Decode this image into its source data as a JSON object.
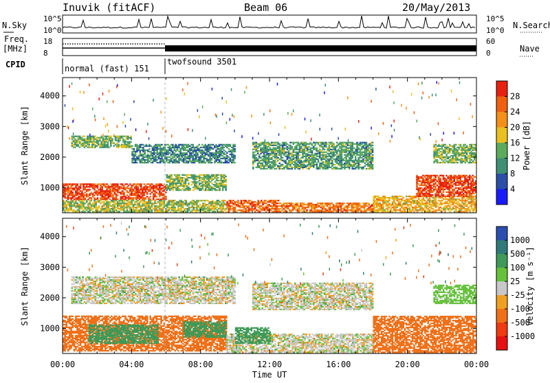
{
  "header": {
    "station": "Inuvik (fitACF)",
    "beam": "Beam 06",
    "date": "20/May/2013"
  },
  "top_panels": {
    "nsky": {
      "label": "N.Sky",
      "ticks": [
        "10^5",
        "10^0"
      ]
    },
    "nsearch": {
      "label": "N.Search",
      "ticks": [
        "10^5",
        "10^0"
      ]
    },
    "freq": {
      "label_line1": "Freq.",
      "label_line2": "[MHz]",
      "ticks": [
        "18",
        "8"
      ]
    },
    "nave": {
      "label": "Nave",
      "ticks": [
        "60",
        "0"
      ]
    },
    "cpid": {
      "label": "CPID",
      "segments": [
        {
          "name": "normal (fast) 151",
          "start_hour": 0,
          "end_hour": 6
        },
        {
          "name": "twofsound 3501",
          "start_hour": 6,
          "end_hour": 24
        }
      ]
    }
  },
  "x_axis": {
    "label": "Time UT",
    "ticks": [
      "00:00",
      "04:00",
      "08:00",
      "12:00",
      "16:00",
      "20:00",
      "00:00"
    ]
  },
  "y_axis": {
    "label": "Slant Range [km]",
    "ticks": [
      "1000",
      "2000",
      "3000",
      "4000"
    ]
  },
  "colorbars": {
    "power": {
      "label": "Power [dB]",
      "ticks": [
        "4",
        "8",
        "12",
        "16",
        "20",
        "24",
        "28"
      ],
      "colors": [
        "#1a1aff",
        "#2b4ea8",
        "#3f8f74",
        "#5cab5c",
        "#e8c020",
        "#f49018",
        "#f06010",
        "#e82010"
      ]
    },
    "velocity": {
      "label": "Velocity [m s⁻¹]",
      "ticks": [
        "1000",
        "500",
        "100",
        "25",
        "-25",
        "-100",
        "-500",
        "-1000"
      ],
      "colors": [
        "#2a4fb0",
        "#2f7a78",
        "#3f9a58",
        "#66c23c",
        "#c8c8c8",
        "#f0a020",
        "#f07018",
        "#f03a10",
        "#e81010"
      ]
    }
  },
  "colors": {
    "ground_scatter": "#bdbdb5",
    "axis": "#000000"
  },
  "chart_data": [
    {
      "type": "heatmap",
      "name": "power",
      "xlabel": "Time UT",
      "ylabel": "Slant Range [km]",
      "xlim": [
        0,
        24
      ],
      "ylim": [
        180,
        4600
      ],
      "colorbar_label": "Power [dB]",
      "regions": [
        {
          "t0": 0.0,
          "t1": 6.0,
          "r0": 600,
          "r1": 1100,
          "value": 28
        },
        {
          "t0": 0.0,
          "t1": 9.5,
          "r0": 200,
          "r1": 600,
          "value": 16
        },
        {
          "t0": 0.5,
          "t1": 4.0,
          "r0": 2300,
          "r1": 2700,
          "value": 14
        },
        {
          "t0": 4.0,
          "t1": 10.0,
          "r0": 1800,
          "r1": 2400,
          "value": 10
        },
        {
          "t0": 6.0,
          "t1": 9.5,
          "r0": 900,
          "r1": 1400,
          "value": 14
        },
        {
          "t0": 9.5,
          "t1": 12.5,
          "r0": 200,
          "r1": 600,
          "value": 26
        },
        {
          "t0": 12.5,
          "t1": 18.0,
          "r0": 200,
          "r1": 500,
          "value": 24
        },
        {
          "t0": 11.0,
          "t1": 18.0,
          "r0": 1600,
          "r1": 2500,
          "value": 12
        },
        {
          "t0": 18.0,
          "t1": 24.0,
          "r0": 200,
          "r1": 700,
          "value": 20
        },
        {
          "t0": 20.5,
          "t1": 24.0,
          "r0": 700,
          "r1": 1400,
          "value": 28
        },
        {
          "t0": 21.5,
          "t1": 24.0,
          "r0": 1800,
          "r1": 2400,
          "value": 14
        }
      ]
    },
    {
      "type": "heatmap",
      "name": "velocity",
      "xlabel": "Time UT",
      "ylabel": "Slant Range [km]",
      "xlim": [
        0,
        24
      ],
      "ylim": [
        180,
        4600
      ],
      "colorbar_label": "Velocity [m s⁻¹]",
      "regions": [
        {
          "t0": 0.0,
          "t1": 9.5,
          "r0": 250,
          "r1": 1400,
          "value": -300
        },
        {
          "t0": 1.5,
          "t1": 5.5,
          "r0": 500,
          "r1": 1100,
          "value": 150
        },
        {
          "t0": 0.5,
          "t1": 10.0,
          "r0": 1800,
          "r1": 2700,
          "value": 0
        },
        {
          "t0": 7.0,
          "t1": 9.5,
          "r0": 700,
          "r1": 1200,
          "value": 200
        },
        {
          "t0": 9.5,
          "t1": 18.0,
          "r0": 200,
          "r1": 800,
          "value": 0
        },
        {
          "t0": 10.0,
          "t1": 12.0,
          "r0": 500,
          "r1": 1000,
          "value": 150
        },
        {
          "t0": 11.0,
          "t1": 18.0,
          "r0": 1600,
          "r1": 2500,
          "value": 0
        },
        {
          "t0": 18.0,
          "t1": 24.0,
          "r0": 200,
          "r1": 1400,
          "value": -400
        },
        {
          "t0": 21.5,
          "t1": 24.0,
          "r0": 1800,
          "r1": 2400,
          "value": 60
        }
      ]
    }
  ]
}
